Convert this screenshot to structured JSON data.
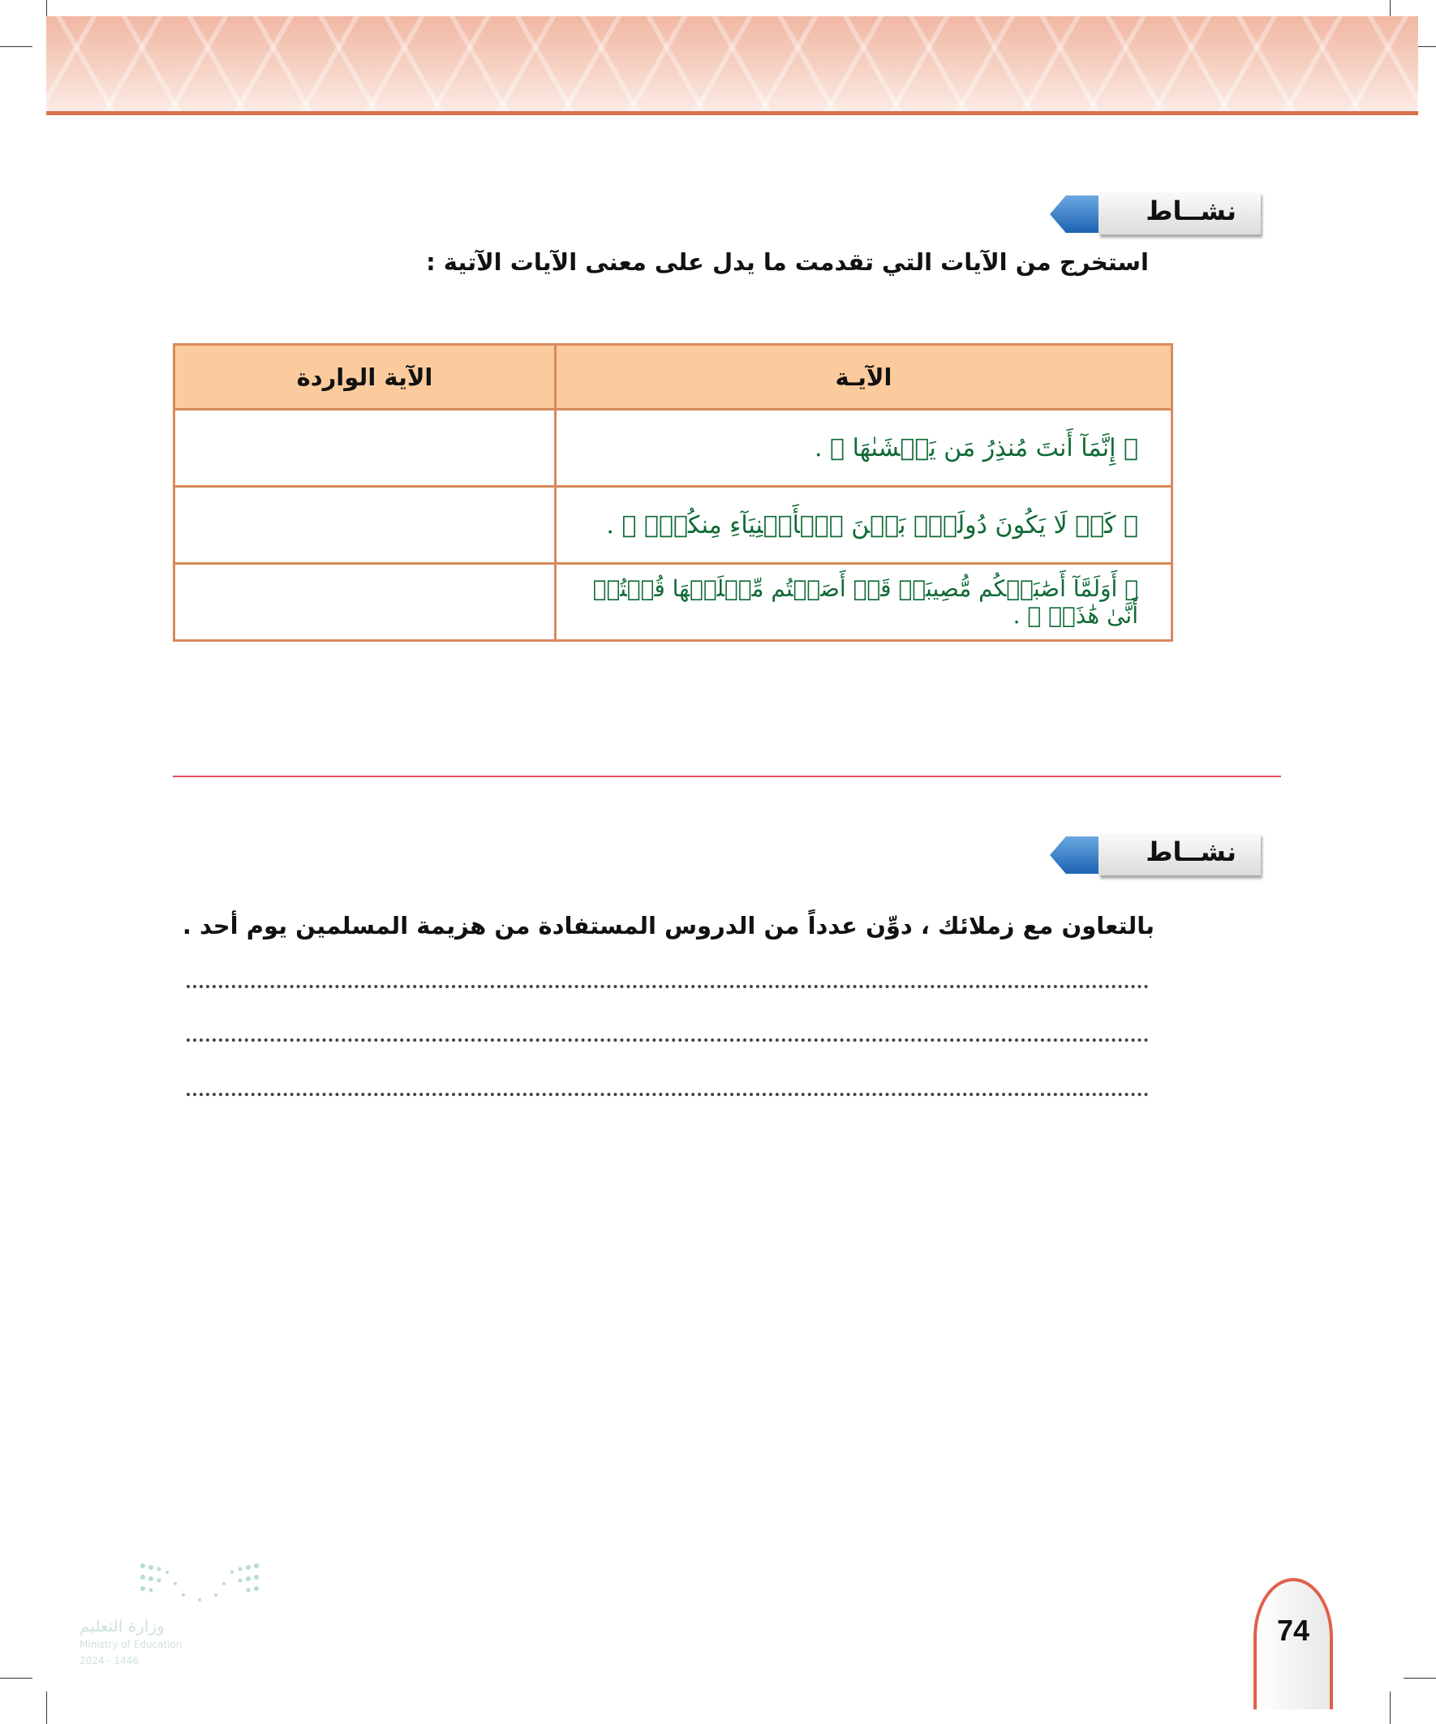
{
  "activity1": {
    "badge": "نشــاط",
    "instruction": "استخرج من الآيات التي تقدمت ما يدل على معنى الآيات الآتية :",
    "table": {
      "headers": [
        "الآيـة",
        "الآية الواردة"
      ],
      "rows": [
        {
          "ayah": "﴿ إِنَّمَآ أَنتَ مُنذِرُ مَن يَخۡشَىٰهَا ﴾ .",
          "answer": ""
        },
        {
          "ayah": "﴿ كَيۡ لَا يَكُونَ دُولَةَۢ بَيۡنَ ٱلۡأَغۡنِيَآءِ مِنكُمۡۚ ﴾ .",
          "answer": ""
        },
        {
          "ayah": "﴿ أَوَلَمَّآ أَصَٰبَتۡكُم مُّصِيبَةٞ قَدۡ أَصَبۡتُم مِّثۡلَيۡهَا قُلۡتُمۡ أَنَّىٰ هَٰذَاۖ ﴾ .",
          "answer": ""
        }
      ]
    }
  },
  "activity2": {
    "badge": "نشــاط",
    "instruction": "بالتعاون مع زملائك ، دوِّن عدداً من الدروس المستفادة من هزيمة المسلمين يوم أحد ."
  },
  "footer": {
    "logo_ar": "وزارة التعليم",
    "logo_en": "Ministry of Education",
    "logo_year": "2024 - 1446",
    "page_number": "74"
  },
  "colors": {
    "accent": "#d9704f",
    "table_header": "#fbcb9d",
    "ayah_text": "#0f6a35",
    "badge_blue": "#1d63b3"
  }
}
